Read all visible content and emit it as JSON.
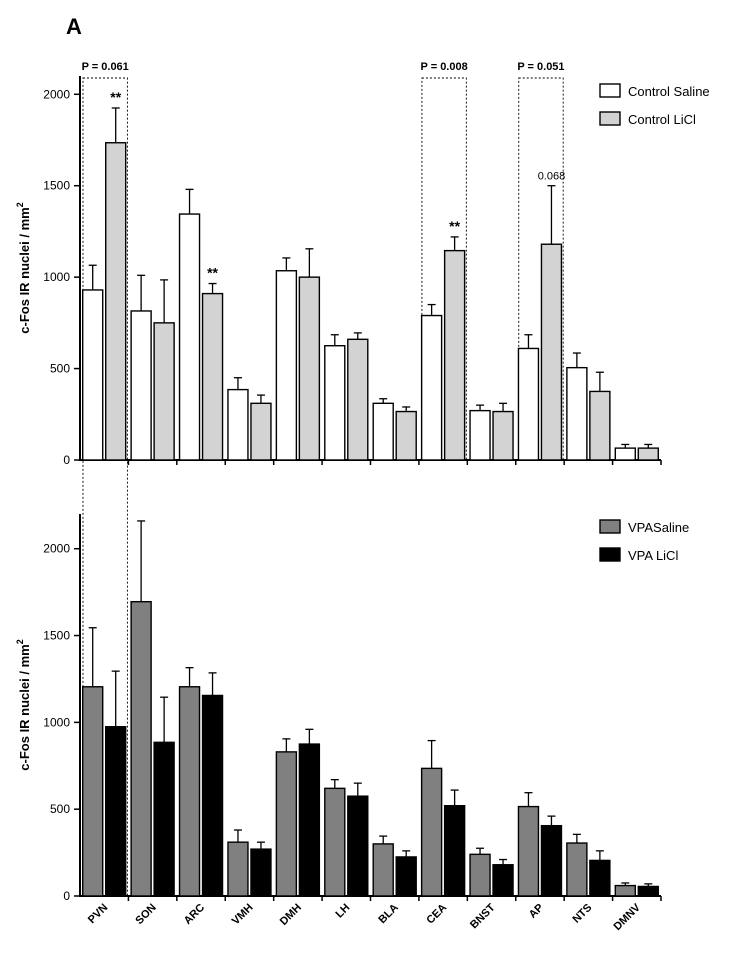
{
  "figure": {
    "panel_label": "A",
    "p_annotations": [
      {
        "text": "P = 0.061",
        "region": "PVN"
      },
      {
        "text": "P = 0.008",
        "region": "CEA"
      },
      {
        "text": "P = 0.051",
        "region": "AP"
      }
    ],
    "colors": {
      "control_saline": "#ffffff",
      "control_licl": "#d3d3d3",
      "vpa_saline": "#808080",
      "vpa_licl": "#000000"
    }
  },
  "chart_data": [
    {
      "type": "bar",
      "panel": "top",
      "categories": [
        "PVN",
        "SON",
        "ARC",
        "VMH",
        "DMH",
        "LH",
        "BLA",
        "CEA",
        "BNST",
        "AP",
        "NTS",
        "DMNV"
      ],
      "ylabel": "c-Fos IR nuclei / mm",
      "ylabel_superscript": "2",
      "ylim": [
        0,
        2100
      ],
      "yticks": [
        0,
        500,
        1000,
        1500,
        2000
      ],
      "legend_position": "top-right",
      "series": [
        {
          "name": "Control Saline",
          "values": [
            930,
            815,
            1345,
            385,
            1035,
            625,
            310,
            790,
            270,
            610,
            505,
            65
          ],
          "errors": [
            135,
            195,
            135,
            65,
            70,
            60,
            25,
            60,
            30,
            75,
            80,
            20
          ]
        },
        {
          "name": "Control LiCl",
          "values": [
            1735,
            750,
            910,
            310,
            1000,
            660,
            265,
            1145,
            265,
            1180,
            375,
            65
          ],
          "errors": [
            190,
            235,
            55,
            45,
            155,
            35,
            25,
            75,
            45,
            320,
            105,
            20
          ]
        }
      ],
      "annotations": [
        {
          "category": "PVN",
          "series": "Control LiCl",
          "text": "**"
        },
        {
          "category": "ARC",
          "series": "Control LiCl",
          "text": "**"
        },
        {
          "category": "CEA",
          "series": "Control LiCl",
          "text": "**"
        },
        {
          "category": "AP",
          "series": "Control LiCl",
          "text": "0.068"
        }
      ]
    },
    {
      "type": "bar",
      "panel": "bottom",
      "categories": [
        "PVN",
        "SON",
        "ARC",
        "VMH",
        "DMH",
        "LH",
        "BLA",
        "CEA",
        "BNST",
        "AP",
        "NTS",
        "DMNV"
      ],
      "ylabel": "c-Fos IR nuclei / mm",
      "ylabel_superscript": "2",
      "ylim": [
        0,
        2200
      ],
      "yticks": [
        0,
        500,
        1000,
        1500,
        2000
      ],
      "legend_position": "top-right",
      "series": [
        {
          "name": "VPASaline",
          "values": [
            1205,
            1695,
            1205,
            310,
            830,
            620,
            300,
            735,
            240,
            515,
            305,
            60
          ],
          "errors": [
            340,
            465,
            110,
            70,
            75,
            50,
            45,
            160,
            35,
            80,
            50,
            15
          ]
        },
        {
          "name": "VPA LiCl",
          "values": [
            975,
            885,
            1155,
            270,
            875,
            575,
            225,
            520,
            180,
            405,
            205,
            55
          ],
          "errors": [
            320,
            260,
            130,
            40,
            85,
            75,
            35,
            90,
            30,
            55,
            55,
            15
          ]
        }
      ]
    }
  ]
}
